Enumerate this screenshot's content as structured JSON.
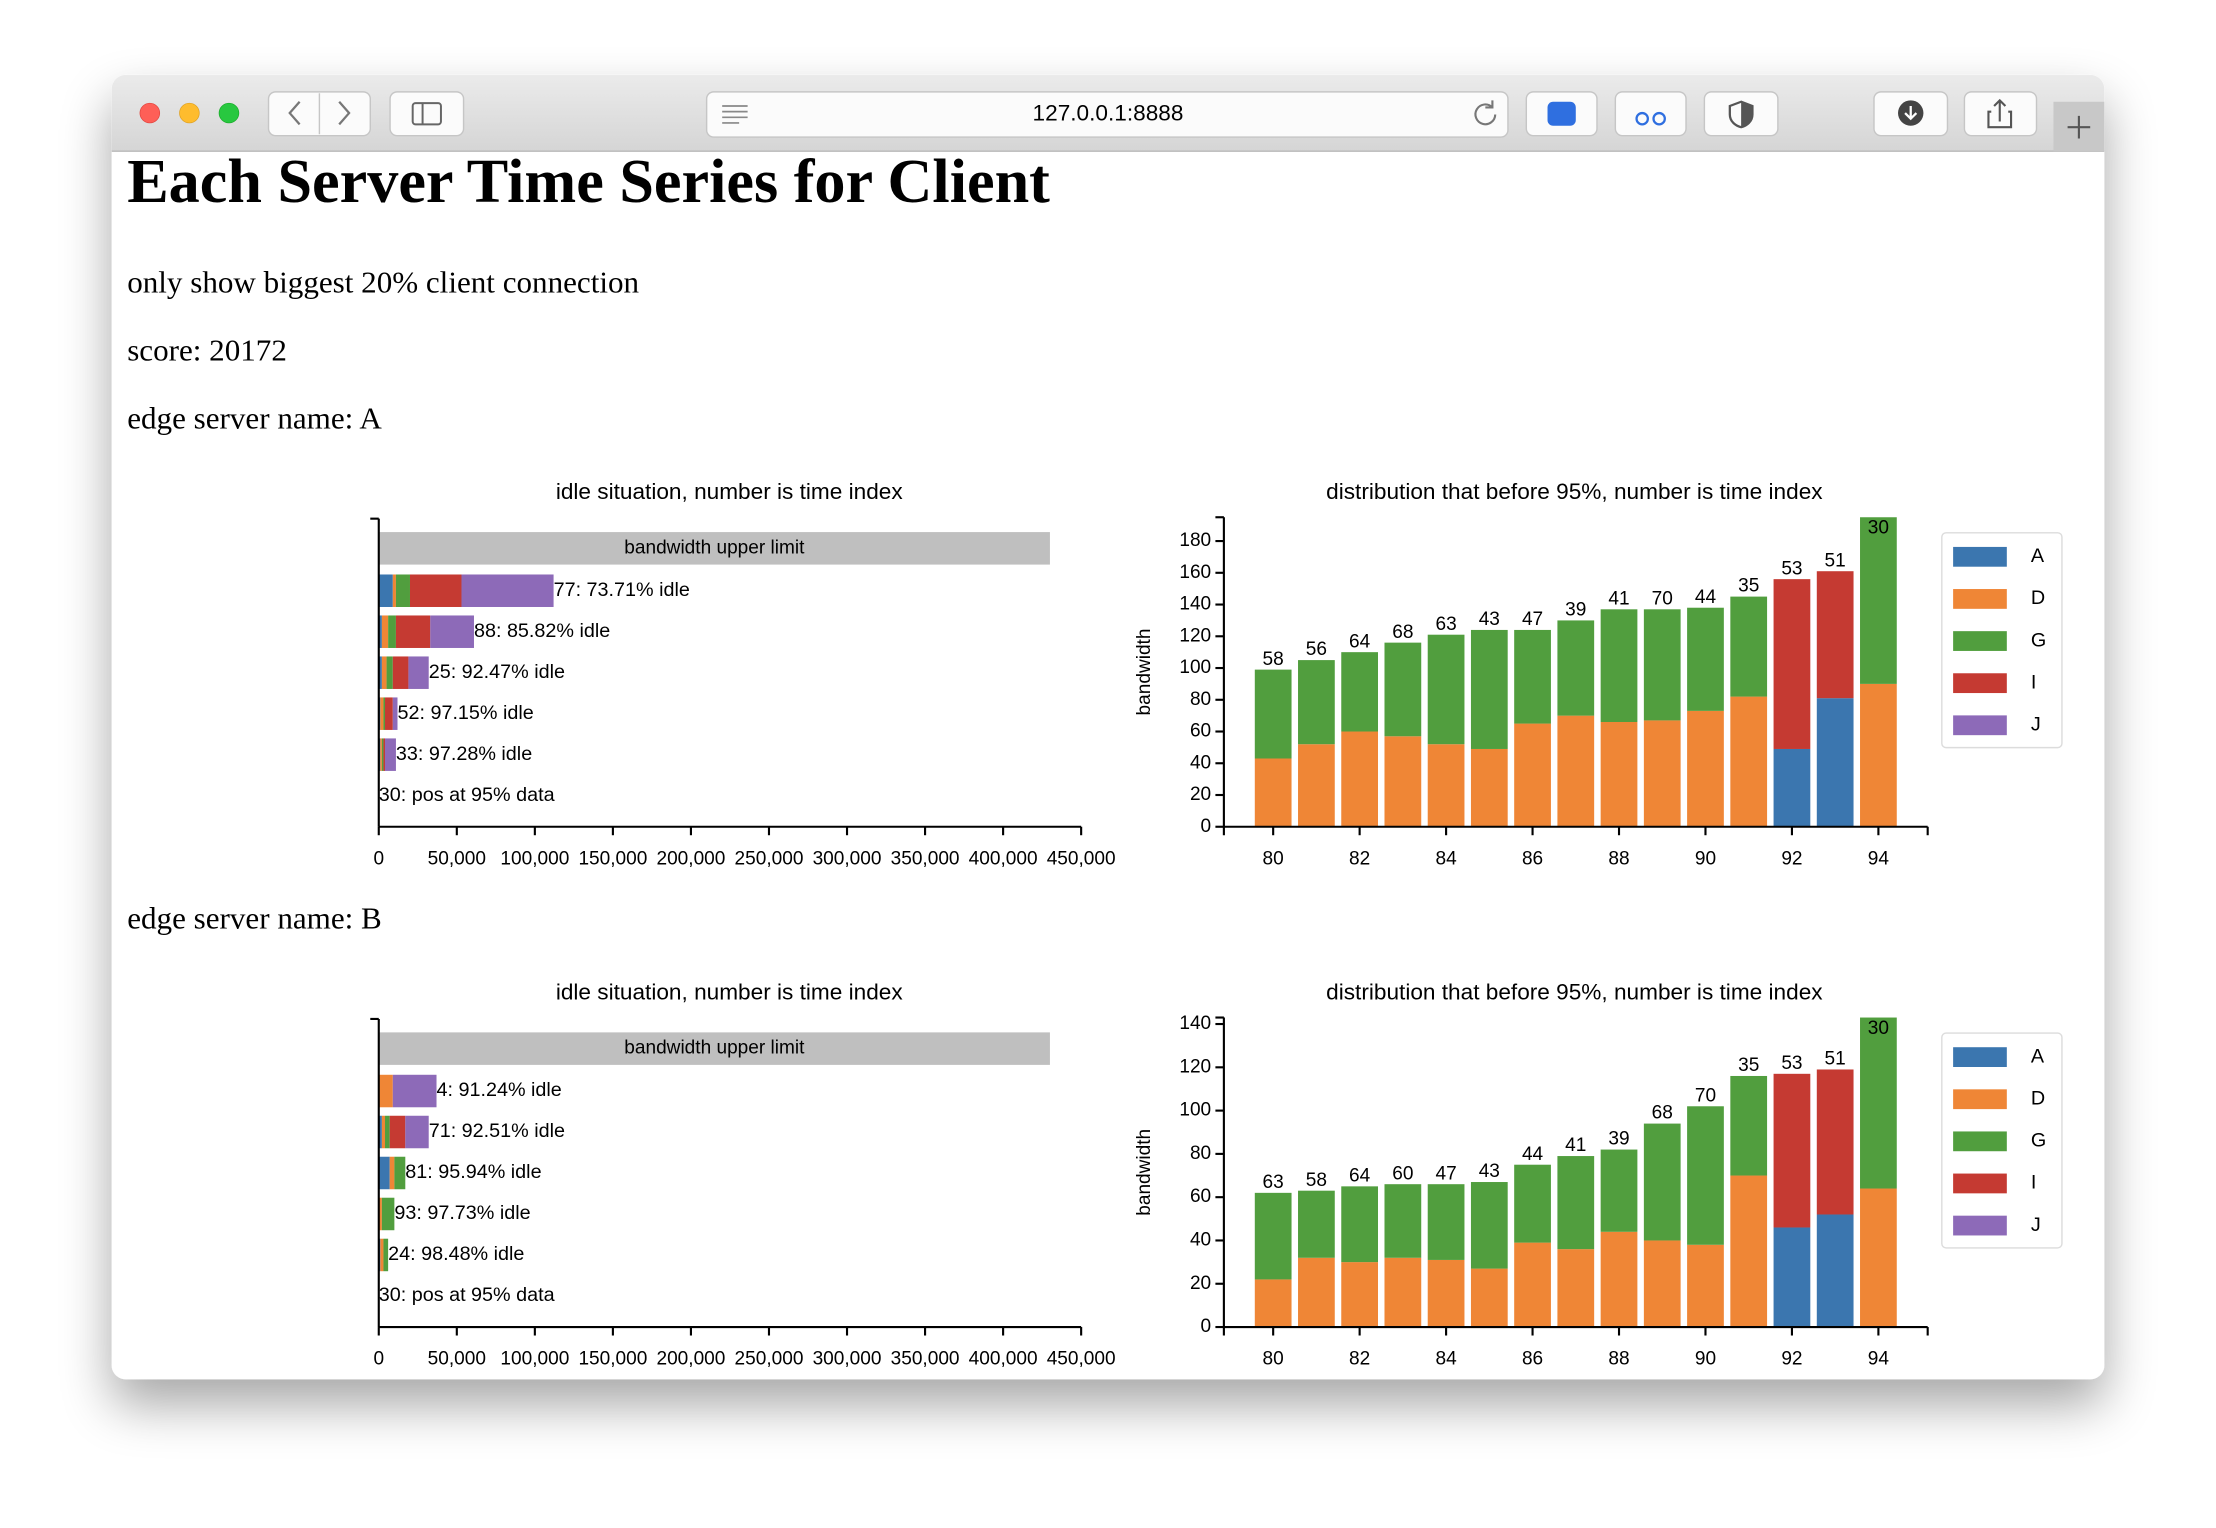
{
  "browser": {
    "url": "127.0.0.1:8888"
  },
  "header": {
    "title": "Each Server Time Series for Client",
    "subtitle": "only show biggest 20% client connection",
    "score": "score: 20172"
  },
  "sections": [
    {
      "heading": "edge server name: A"
    },
    {
      "heading": "edge server name: B"
    }
  ],
  "chart_data": [
    {
      "type": "barh",
      "stacked": true,
      "title": "idle situation, number is time index",
      "reference": {
        "label": "bandwidth upper limit",
        "value": 430000,
        "color": "#bfbfbf"
      },
      "categories": [
        "77: 73.71% idle",
        "88: 85.82% idle",
        "25: 92.47% idle",
        "52: 97.15% idle",
        "33: 97.28% idle",
        "30: pos at 95% data"
      ],
      "series": [
        {
          "name": "A",
          "color": "#3b76af",
          "values": [
            9000,
            2000,
            2000,
            1000,
            1000,
            null
          ]
        },
        {
          "name": "D",
          "color": "#ef8636",
          "values": [
            2000,
            4000,
            3000,
            2000,
            1000,
            null
          ]
        },
        {
          "name": "G",
          "color": "#519e3e",
          "values": [
            9000,
            5000,
            4000,
            1000,
            1000,
            null
          ]
        },
        {
          "name": "I",
          "color": "#c53a32",
          "values": [
            33000,
            22000,
            10000,
            5000,
            1000,
            null
          ]
        },
        {
          "name": "J",
          "color": "#8d6ab8",
          "values": [
            59000,
            28000,
            13000,
            3000,
            7000,
            null
          ]
        }
      ],
      "xlim": [
        0,
        450000
      ],
      "xticks": [
        0,
        {
          "value": 50000,
          "label": "50,000"
        },
        {
          "value": 100000,
          "label": "100,000"
        },
        {
          "value": 150000,
          "label": "150,000"
        },
        {
          "value": 200000,
          "label": "200,000"
        },
        {
          "value": 250000,
          "label": "250,000"
        },
        {
          "value": 300000,
          "label": "300,000"
        },
        {
          "value": 350000,
          "label": "350,000"
        },
        {
          "value": 400000,
          "label": "400,000"
        },
        {
          "value": 450000,
          "label": "450,000"
        }
      ]
    },
    {
      "type": "bar",
      "stacked": true,
      "title": "distribution that before 95%, number is time index",
      "ylabel": "bandwidth",
      "x": [
        80,
        81,
        82,
        83,
        84,
        85,
        86,
        87,
        88,
        89,
        90,
        91,
        92,
        93,
        94
      ],
      "top_labels": [
        58,
        56,
        64,
        68,
        63,
        43,
        47,
        39,
        41,
        70,
        44,
        35,
        53,
        51,
        30
      ],
      "series": [
        {
          "name": "A",
          "color": "#3b76af",
          "values": [
            null,
            null,
            null,
            null,
            null,
            null,
            null,
            null,
            null,
            null,
            null,
            null,
            49,
            81,
            null
          ]
        },
        {
          "name": "D",
          "color": "#ef8636",
          "values": [
            43,
            52,
            60,
            57,
            52,
            49,
            65,
            70,
            66,
            67,
            73,
            82,
            null,
            null,
            90
          ]
        },
        {
          "name": "G",
          "color": "#519e3e",
          "values": [
            56,
            53,
            50,
            59,
            69,
            75,
            59,
            60,
            71,
            70,
            65,
            63,
            null,
            null,
            105
          ]
        },
        {
          "name": "I",
          "color": "#c53a32",
          "values": [
            null,
            null,
            null,
            null,
            null,
            null,
            null,
            null,
            null,
            null,
            null,
            null,
            107,
            80,
            null
          ]
        },
        {
          "name": "J",
          "color": "#8d6ab8",
          "values": [
            null,
            null,
            null,
            null,
            null,
            null,
            null,
            null,
            null,
            null,
            null,
            null,
            null,
            null,
            null
          ]
        }
      ],
      "xlim": [
        78.86,
        95.14
      ],
      "xticks": [
        80,
        82,
        84,
        86,
        88,
        90,
        92,
        94
      ],
      "ylim": [
        0,
        195
      ],
      "yticks": [
        0,
        20,
        40,
        60,
        80,
        100,
        120,
        140,
        160,
        180
      ],
      "legend": "right"
    },
    {
      "type": "barh",
      "stacked": true,
      "title": "idle situation, number is time index",
      "reference": {
        "label": "bandwidth upper limit",
        "value": 430000,
        "color": "#bfbfbf"
      },
      "categories": [
        "4: 91.24% idle",
        "71: 92.51% idle",
        "81: 95.94% idle",
        "93: 97.73% idle",
        "24: 98.48% idle",
        "30: pos at 95% data"
      ],
      "series": [
        {
          "name": "A",
          "color": "#3b76af",
          "values": [
            0,
            2000,
            7000,
            0,
            1000,
            null
          ]
        },
        {
          "name": "D",
          "color": "#ef8636",
          "values": [
            9000,
            2000,
            3000,
            2000,
            2000,
            null
          ]
        },
        {
          "name": "G",
          "color": "#519e3e",
          "values": [
            0,
            3000,
            7000,
            8000,
            3000,
            null
          ]
        },
        {
          "name": "I",
          "color": "#c53a32",
          "values": [
            0,
            10000,
            0,
            0,
            0,
            null
          ]
        },
        {
          "name": "J",
          "color": "#8d6ab8",
          "values": [
            28000,
            15000,
            0,
            0,
            0,
            null
          ]
        }
      ],
      "xlim": [
        0,
        450000
      ],
      "xticks": [
        0,
        {
          "value": 50000,
          "label": "50,000"
        },
        {
          "value": 100000,
          "label": "100,000"
        },
        {
          "value": 150000,
          "label": "150,000"
        },
        {
          "value": 200000,
          "label": "200,000"
        },
        {
          "value": 250000,
          "label": "250,000"
        },
        {
          "value": 300000,
          "label": "300,000"
        },
        {
          "value": 350000,
          "label": "350,000"
        },
        {
          "value": 400000,
          "label": "400,000"
        },
        {
          "value": 450000,
          "label": "450,000"
        }
      ]
    },
    {
      "type": "bar",
      "stacked": true,
      "title": "distribution that before 95%, number is time index",
      "ylabel": "bandwidth",
      "x": [
        80,
        81,
        82,
        83,
        84,
        85,
        86,
        87,
        88,
        89,
        90,
        91,
        92,
        93,
        94
      ],
      "top_labels": [
        63,
        58,
        64,
        60,
        47,
        43,
        44,
        41,
        39,
        68,
        70,
        35,
        53,
        51,
        30
      ],
      "series": [
        {
          "name": "A",
          "color": "#3b76af",
          "values": [
            null,
            null,
            null,
            null,
            null,
            null,
            null,
            null,
            null,
            null,
            null,
            null,
            46,
            52,
            null
          ]
        },
        {
          "name": "D",
          "color": "#ef8636",
          "values": [
            22,
            32,
            30,
            32,
            31,
            27,
            39,
            36,
            44,
            40,
            38,
            70,
            null,
            null,
            64
          ]
        },
        {
          "name": "G",
          "color": "#519e3e",
          "values": [
            40,
            31,
            35,
            34,
            35,
            40,
            36,
            43,
            38,
            54,
            64,
            46,
            null,
            null,
            79
          ]
        },
        {
          "name": "I",
          "color": "#c53a32",
          "values": [
            null,
            null,
            null,
            null,
            null,
            null,
            null,
            null,
            null,
            null,
            null,
            null,
            71,
            67,
            null
          ]
        },
        {
          "name": "J",
          "color": "#8d6ab8",
          "values": [
            null,
            null,
            null,
            null,
            null,
            null,
            null,
            null,
            null,
            null,
            null,
            null,
            null,
            null,
            null
          ]
        }
      ],
      "xlim": [
        78.86,
        95.14
      ],
      "xticks": [
        80,
        82,
        84,
        86,
        88,
        90,
        92,
        94
      ],
      "ylim": [
        0,
        143
      ],
      "yticks": [
        0,
        20,
        40,
        60,
        80,
        100,
        120,
        140
      ],
      "legend": "right"
    }
  ]
}
